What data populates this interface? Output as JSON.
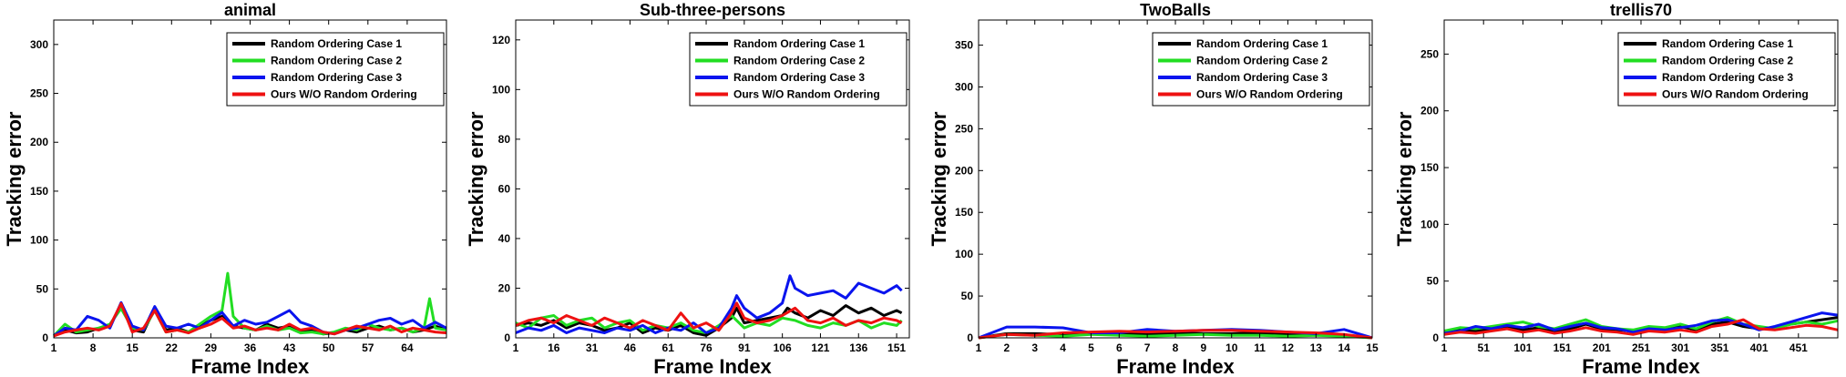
{
  "colors": {
    "Random Ordering Case 1": "#000000",
    "Random Ordering Case 2": "#22dd22",
    "Random Ordering Case 3": "#0a14ee",
    "Ours W/O Random Ordering": "#ee1111"
  },
  "chart_data": [
    {
      "type": "line",
      "title": "animal",
      "xlabel": "Frame Index",
      "ylabel": "Tracking error",
      "xlim": [
        1,
        71
      ],
      "ylim": [
        0,
        325
      ],
      "xticks": [
        1,
        8,
        15,
        22,
        29,
        36,
        43,
        50,
        57,
        64
      ],
      "yticks": [
        0,
        50,
        100,
        150,
        200,
        250,
        300
      ],
      "legend": [
        "Random Ordering Case 1",
        "Random Ordering Case 2",
        "Random Ordering Case 3",
        "Ours W/O Random Ordering"
      ],
      "legend_position": "top-right",
      "series": [
        {
          "name": "Random Ordering Case 1",
          "x": [
            1,
            3,
            5,
            7,
            9,
            11,
            13,
            15,
            17,
            19,
            21,
            23,
            25,
            27,
            29,
            31,
            33,
            35,
            37,
            39,
            41,
            43,
            45,
            47,
            49,
            51,
            53,
            55,
            57,
            59,
            61,
            63,
            65,
            67,
            69,
            71
          ],
          "y": [
            2,
            8,
            5,
            6,
            10,
            12,
            34,
            8,
            6,
            30,
            8,
            10,
            6,
            12,
            18,
            22,
            12,
            10,
            8,
            14,
            10,
            12,
            6,
            8,
            4,
            5,
            8,
            6,
            10,
            12,
            8,
            10,
            6,
            8,
            12,
            8
          ]
        },
        {
          "name": "Random Ordering Case 2",
          "x": [
            1,
            3,
            5,
            7,
            9,
            11,
            13,
            15,
            17,
            19,
            21,
            23,
            25,
            27,
            29,
            31,
            32,
            33,
            35,
            37,
            39,
            41,
            43,
            45,
            47,
            49,
            51,
            53,
            55,
            57,
            59,
            61,
            63,
            65,
            67,
            68,
            69,
            71
          ],
          "y": [
            2,
            14,
            6,
            8,
            10,
            14,
            30,
            10,
            8,
            28,
            6,
            8,
            6,
            14,
            22,
            28,
            66,
            22,
            10,
            8,
            12,
            8,
            10,
            5,
            6,
            4,
            6,
            10,
            8,
            14,
            10,
            8,
            10,
            6,
            10,
            40,
            10,
            8
          ]
        },
        {
          "name": "Random Ordering Case 3",
          "x": [
            1,
            3,
            5,
            7,
            9,
            11,
            13,
            15,
            17,
            19,
            21,
            23,
            25,
            27,
            29,
            31,
            33,
            35,
            37,
            39,
            41,
            43,
            45,
            47,
            49,
            51,
            53,
            55,
            57,
            59,
            61,
            63,
            65,
            67,
            69,
            71
          ],
          "y": [
            2,
            10,
            8,
            22,
            18,
            10,
            36,
            12,
            8,
            32,
            12,
            10,
            14,
            10,
            18,
            26,
            12,
            18,
            14,
            16,
            22,
            28,
            16,
            12,
            6,
            4,
            8,
            10,
            14,
            18,
            20,
            14,
            18,
            10,
            16,
            10
          ]
        },
        {
          "name": "Ours W/O Random Ordering",
          "x": [
            1,
            3,
            5,
            7,
            9,
            11,
            13,
            15,
            17,
            19,
            21,
            23,
            25,
            27,
            29,
            31,
            33,
            35,
            37,
            39,
            41,
            43,
            45,
            47,
            49,
            51,
            53,
            55,
            57,
            59,
            61,
            63,
            65,
            67,
            69,
            71
          ],
          "y": [
            2,
            6,
            8,
            10,
            8,
            12,
            35,
            6,
            10,
            28,
            6,
            8,
            5,
            10,
            14,
            20,
            10,
            12,
            8,
            10,
            8,
            14,
            8,
            10,
            6,
            4,
            8,
            12,
            10,
            8,
            12,
            6,
            10,
            8,
            6,
            5
          ]
        }
      ]
    },
    {
      "type": "line",
      "title": "Sub-three-persons",
      "xlabel": "Frame Index",
      "ylabel": "Tracking error",
      "xlim": [
        1,
        156
      ],
      "ylim": [
        0,
        128
      ],
      "xticks": [
        1,
        16,
        31,
        46,
        61,
        76,
        91,
        106,
        121,
        136,
        151
      ],
      "yticks": [
        0,
        20,
        40,
        60,
        80,
        100,
        120
      ],
      "legend": [
        "Random Ordering Case 1",
        "Random Ordering Case 2",
        "Random Ordering Case 3",
        "Ours W/O Random Ordering"
      ],
      "legend_position": "top-right",
      "series": [
        {
          "name": "Random Ordering Case 1",
          "x": [
            1,
            6,
            11,
            16,
            21,
            26,
            31,
            36,
            41,
            46,
            51,
            56,
            61,
            66,
            71,
            76,
            81,
            86,
            88,
            91,
            96,
            101,
            106,
            108,
            111,
            116,
            121,
            126,
            131,
            136,
            141,
            146,
            151,
            153
          ],
          "y": [
            5,
            6,
            5,
            7,
            4,
            6,
            5,
            3,
            4,
            6,
            2,
            4,
            3,
            5,
            2,
            1,
            4,
            8,
            12,
            6,
            7,
            8,
            9,
            12,
            10,
            8,
            11,
            9,
            13,
            10,
            12,
            9,
            11,
            10
          ]
        },
        {
          "name": "Random Ordering Case 2",
          "x": [
            1,
            6,
            11,
            16,
            21,
            26,
            31,
            36,
            41,
            46,
            51,
            56,
            61,
            66,
            71,
            76,
            81,
            86,
            91,
            96,
            101,
            106,
            111,
            116,
            121,
            126,
            131,
            136,
            141,
            146,
            151,
            153
          ],
          "y": [
            6,
            4,
            8,
            9,
            5,
            7,
            8,
            4,
            6,
            7,
            3,
            5,
            4,
            6,
            3,
            2,
            5,
            9,
            4,
            6,
            5,
            8,
            7,
            5,
            4,
            6,
            5,
            7,
            4,
            6,
            5,
            7
          ]
        },
        {
          "name": "Random Ordering Case 3",
          "x": [
            1,
            6,
            11,
            16,
            21,
            26,
            31,
            36,
            41,
            46,
            51,
            56,
            61,
            66,
            71,
            76,
            81,
            86,
            88,
            91,
            96,
            101,
            106,
            109,
            111,
            116,
            121,
            126,
            131,
            136,
            141,
            146,
            151,
            153
          ],
          "y": [
            2,
            4,
            3,
            5,
            2,
            4,
            3,
            2,
            4,
            3,
            5,
            2,
            4,
            3,
            6,
            2,
            4,
            12,
            17,
            12,
            8,
            10,
            14,
            25,
            20,
            17,
            18,
            19,
            16,
            22,
            20,
            18,
            21,
            19
          ]
        },
        {
          "name": "Ours W/O Random Ordering",
          "x": [
            1,
            6,
            11,
            16,
            21,
            26,
            31,
            36,
            41,
            46,
            51,
            56,
            61,
            66,
            71,
            76,
            81,
            86,
            88,
            91,
            96,
            101,
            106,
            111,
            116,
            121,
            126,
            131,
            136,
            141,
            146,
            151,
            153
          ],
          "y": [
            5,
            7,
            8,
            6,
            9,
            7,
            5,
            8,
            6,
            4,
            7,
            5,
            3,
            10,
            4,
            6,
            3,
            10,
            14,
            8,
            6,
            7,
            9,
            12,
            7,
            6,
            8,
            5,
            7,
            6,
            8,
            7,
            6
          ]
        }
      ]
    },
    {
      "type": "line",
      "title": "TwoBalls",
      "xlabel": "Frame Index",
      "ylabel": "Tracking error",
      "xlim": [
        1,
        15
      ],
      "ylim": [
        0,
        380
      ],
      "xticks": [
        1,
        2,
        3,
        4,
        5,
        6,
        7,
        8,
        9,
        10,
        11,
        12,
        13,
        14,
        15
      ],
      "yticks": [
        0,
        50,
        100,
        150,
        200,
        250,
        300,
        350
      ],
      "legend": [
        "Random Ordering Case 1",
        "Random Ordering Case 2",
        "Random Ordering Case 3",
        "Ours W/O Random Ordering"
      ],
      "legend_position": "top-right",
      "series": [
        {
          "name": "Random Ordering Case 1",
          "x": [
            1,
            2,
            3,
            4,
            5,
            6,
            7,
            8,
            9,
            10,
            11,
            12,
            13,
            14,
            15
          ],
          "y": [
            0,
            5,
            5,
            4,
            6,
            5,
            4,
            6,
            5,
            5,
            6,
            4,
            5,
            3,
            0
          ]
        },
        {
          "name": "Random Ordering Case 2",
          "x": [
            1,
            2,
            3,
            4,
            5,
            6,
            7,
            8,
            9,
            10,
            11,
            12,
            13,
            14,
            15
          ],
          "y": [
            0,
            4,
            3,
            2,
            4,
            3,
            2,
            3,
            4,
            3,
            3,
            2,
            3,
            2,
            0
          ]
        },
        {
          "name": "Random Ordering Case 3",
          "x": [
            1,
            2,
            3,
            4,
            5,
            6,
            7,
            8,
            9,
            10,
            11,
            12,
            13,
            14,
            15
          ],
          "y": [
            0,
            13,
            13,
            12,
            6,
            6,
            10,
            8,
            9,
            10,
            9,
            7,
            5,
            10,
            0
          ]
        },
        {
          "name": "Ours W/O Random Ordering",
          "x": [
            1,
            2,
            3,
            4,
            5,
            6,
            7,
            8,
            9,
            10,
            11,
            12,
            13,
            14,
            15
          ],
          "y": [
            0,
            4,
            3,
            6,
            7,
            8,
            7,
            8,
            9,
            9,
            8,
            7,
            6,
            4,
            0
          ]
        }
      ]
    },
    {
      "type": "line",
      "title": "trellis70",
      "xlabel": "Frame Index",
      "ylabel": "Tracking error",
      "xlim": [
        1,
        501
      ],
      "ylim": [
        0,
        280
      ],
      "xticks": [
        1,
        51,
        101,
        151,
        201,
        251,
        301,
        351,
        401,
        451
      ],
      "yticks": [
        0,
        50,
        100,
        150,
        200,
        250
      ],
      "legend": [
        "Random Ordering Case 1",
        "Random Ordering Case 2",
        "Random Ordering Case 3",
        "Ours W/O Random Ordering"
      ],
      "legend_position": "top-right",
      "series": [
        {
          "name": "Random Ordering Case 1",
          "x": [
            1,
            21,
            41,
            61,
            81,
            101,
            121,
            141,
            161,
            181,
            201,
            221,
            241,
            261,
            281,
            301,
            321,
            341,
            361,
            381,
            401,
            421,
            441,
            461,
            481,
            501
          ],
          "y": [
            5,
            7,
            6,
            8,
            10,
            7,
            9,
            6,
            8,
            12,
            8,
            7,
            6,
            9,
            8,
            10,
            7,
            12,
            14,
            10,
            8,
            9,
            12,
            14,
            16,
            18
          ]
        },
        {
          "name": "Random Ordering Case 2",
          "x": [
            1,
            21,
            41,
            61,
            81,
            101,
            121,
            141,
            161,
            181,
            201,
            221,
            241,
            261,
            281,
            301,
            321,
            341,
            361,
            381,
            401,
            421,
            441,
            461,
            481,
            501
          ],
          "y": [
            6,
            9,
            8,
            10,
            12,
            14,
            10,
            8,
            12,
            16,
            10,
            8,
            7,
            10,
            9,
            12,
            8,
            14,
            18,
            12,
            10,
            8,
            12,
            14,
            12,
            15
          ]
        },
        {
          "name": "Random Ordering Case 3",
          "x": [
            1,
            21,
            41,
            61,
            81,
            101,
            121,
            141,
            161,
            181,
            201,
            221,
            241,
            261,
            281,
            301,
            321,
            341,
            361,
            381,
            401,
            421,
            441,
            461,
            481,
            501
          ],
          "y": [
            4,
            6,
            10,
            8,
            11,
            9,
            12,
            7,
            10,
            13,
            9,
            8,
            5,
            8,
            7,
            9,
            11,
            15,
            16,
            12,
            7,
            10,
            14,
            18,
            22,
            20
          ]
        },
        {
          "name": "Ours W/O Random Ordering",
          "x": [
            1,
            21,
            41,
            61,
            81,
            101,
            121,
            141,
            161,
            181,
            201,
            221,
            241,
            261,
            281,
            301,
            321,
            341,
            361,
            381,
            401,
            421,
            441,
            461,
            481,
            501
          ],
          "y": [
            3,
            5,
            4,
            6,
            8,
            5,
            7,
            4,
            6,
            9,
            6,
            5,
            3,
            6,
            5,
            7,
            5,
            10,
            12,
            16,
            8,
            7,
            9,
            11,
            10,
            7
          ]
        }
      ]
    }
  ]
}
